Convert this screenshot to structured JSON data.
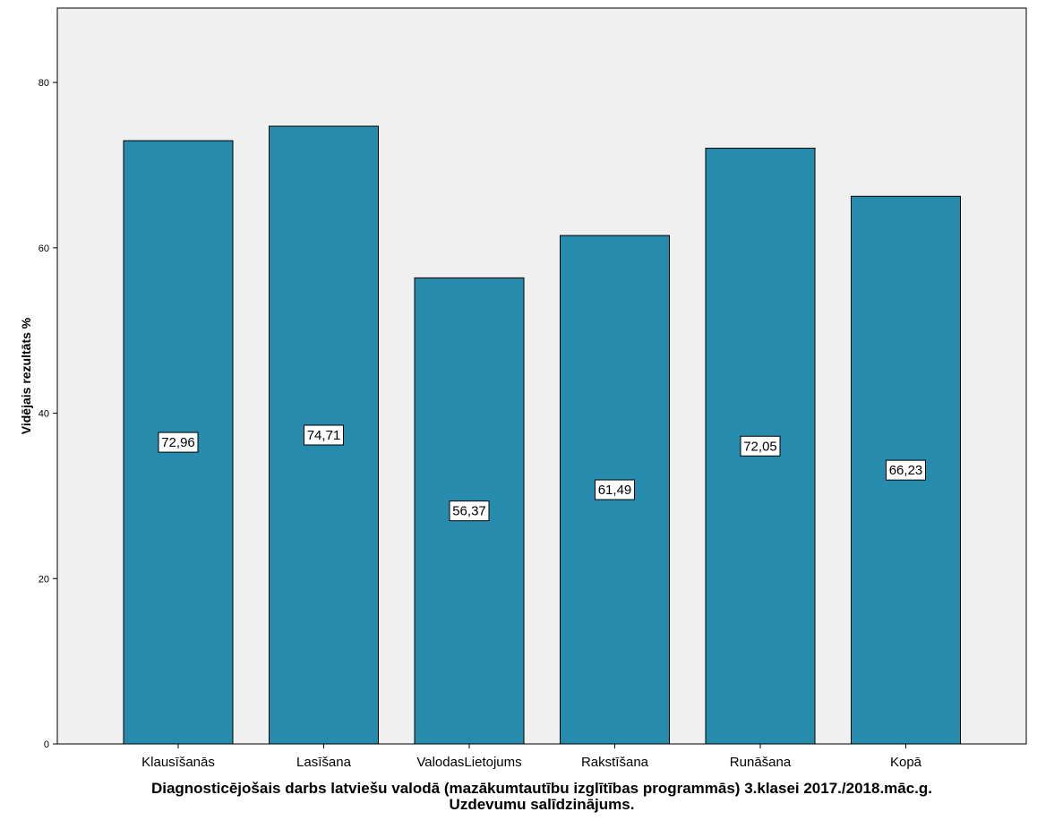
{
  "chart_data": {
    "type": "bar",
    "categories": [
      "Klausīšanās",
      "Lasīšana",
      "ValodasLietojums",
      "Rakstīšana",
      "Runāšana",
      "Kopā"
    ],
    "values": [
      72.96,
      74.71,
      56.37,
      61.49,
      72.05,
      66.23
    ],
    "value_labels": [
      "72,96",
      "74,71",
      "56,37",
      "61,49",
      "72,05",
      "66,23"
    ],
    "ylabel": "Vidējais rezultāts %",
    "xlabel_line1": "Diagnosticējošais darbs latviešu valodā (mazākumtautību izglītības programmās) 3.klasei 2017./2018.māc.g.",
    "xlabel_line2": "Uzdevumu salīdzinājums.",
    "ylim": [
      0,
      89
    ],
    "yticks": [
      0,
      20,
      40,
      60,
      80
    ],
    "grid": false,
    "bar_color": "#268bad",
    "plot_background": "#f0f0f0"
  }
}
